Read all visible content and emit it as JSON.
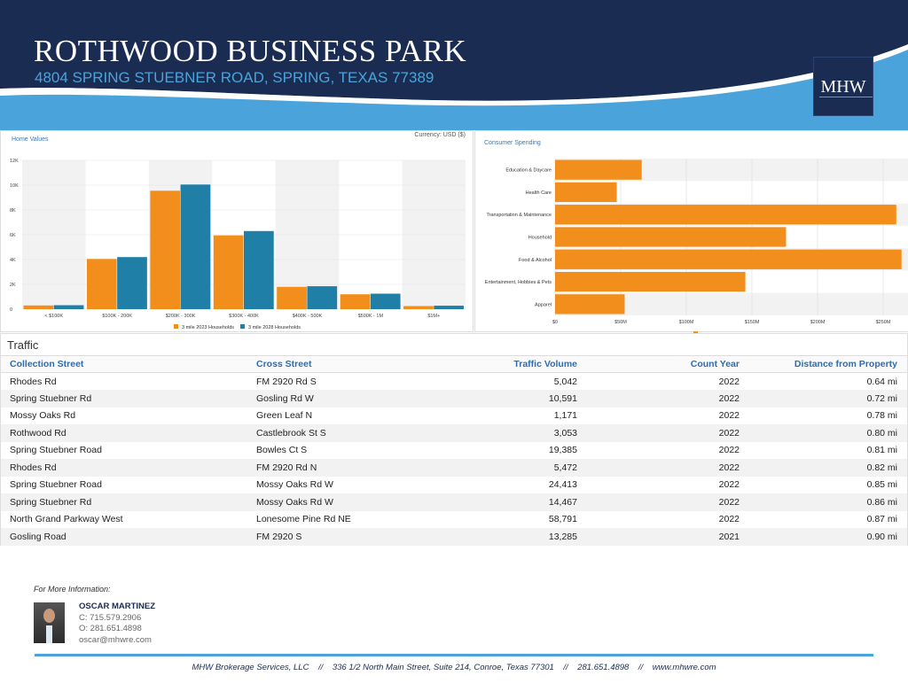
{
  "header": {
    "title": "ROTHWOOD BUSINESS PARK",
    "address": "4804 SPRING STUEBNER ROAD, SPRING, TEXAS 77389",
    "logo": "MHW",
    "colors": {
      "navy": "#1a2c52",
      "blue": "#4aa3db"
    }
  },
  "chart_data": [
    {
      "type": "bar",
      "title": "Home Values",
      "note": "Currency: USD ($)",
      "categories": [
        "< $100K",
        "$100K - 200K",
        "$200K - 300K",
        "$300K - 400K",
        "$400K - 500K",
        "$500K - 1M",
        "$1M+"
      ],
      "series": [
        {
          "name": "3 mile 2023 Households",
          "color": "#f28e1c",
          "values": [
            300,
            4050,
            9550,
            5950,
            1800,
            1200,
            250
          ]
        },
        {
          "name": "3 mile 2028 Households",
          "color": "#1f7fa6",
          "values": [
            320,
            4200,
            10050,
            6300,
            1850,
            1250,
            280
          ]
        }
      ],
      "ylim": [
        0,
        12000
      ],
      "yticks": [
        "0",
        "2K",
        "4K",
        "6K",
        "8K",
        "10K",
        "12K"
      ],
      "grid": true,
      "legend": "bottom"
    },
    {
      "type": "bar",
      "orientation": "horizontal",
      "title": "Consumer Spending",
      "categories": [
        "Education & Daycare",
        "Health Care",
        "Transportation & Maintenance",
        "Household",
        "Food & Alcohol",
        "Entertainment, Hobbies & Pets",
        "Apparel"
      ],
      "series": [
        {
          "color": "#f28e1c",
          "values": [
            66,
            47,
            260,
            176,
            264,
            145,
            53
          ]
        }
      ],
      "unit": "$M",
      "xlim": [
        0,
        270
      ],
      "xticks": [
        "$0",
        "$50M",
        "$100M",
        "$150M",
        "$200M",
        "$250M"
      ],
      "grid": true
    }
  ],
  "traffic": {
    "title": "Traffic",
    "columns": [
      "Collection Street",
      "Cross Street",
      "Traffic Volume",
      "Count Year",
      "Distance from Property"
    ],
    "rows": [
      [
        "Rhodes Rd",
        "FM 2920 Rd S",
        "5,042",
        "2022",
        "0.64 mi"
      ],
      [
        "Spring Stuebner Rd",
        "Gosling Rd W",
        "10,591",
        "2022",
        "0.72 mi"
      ],
      [
        "Mossy Oaks Rd",
        "Green Leaf N",
        "1,171",
        "2022",
        "0.78 mi"
      ],
      [
        "Rothwood Rd",
        "Castlebrook St S",
        "3,053",
        "2022",
        "0.80 mi"
      ],
      [
        "Spring Stuebner Road",
        "Bowles Ct S",
        "19,385",
        "2022",
        "0.81 mi"
      ],
      [
        "Rhodes Rd",
        "FM 2920 Rd N",
        "5,472",
        "2022",
        "0.82 mi"
      ],
      [
        "Spring Stuebner Road",
        "Mossy Oaks Rd W",
        "24,413",
        "2022",
        "0.85 mi"
      ],
      [
        "Spring Stuebner Rd",
        "Mossy Oaks Rd W",
        "14,467",
        "2022",
        "0.86 mi"
      ],
      [
        "North Grand Parkway West",
        "Lonesome Pine Rd NE",
        "58,791",
        "2022",
        "0.87 mi"
      ],
      [
        "Gosling Road",
        "FM 2920 S",
        "13,285",
        "2021",
        "0.90 mi"
      ]
    ]
  },
  "contact": {
    "label": "For More Information:",
    "name": "OSCAR MARTINEZ",
    "cell": "C: 715.579.2906",
    "office": "O: 281.651.4898",
    "email": "oscar@mhwre.com"
  },
  "footer": "MHW Brokerage Services, LLC    //    336 1/2 North Main Street, Suite 214, Conroe, Texas 77301    //    281.651.4898    //    www.mhwre.com"
}
